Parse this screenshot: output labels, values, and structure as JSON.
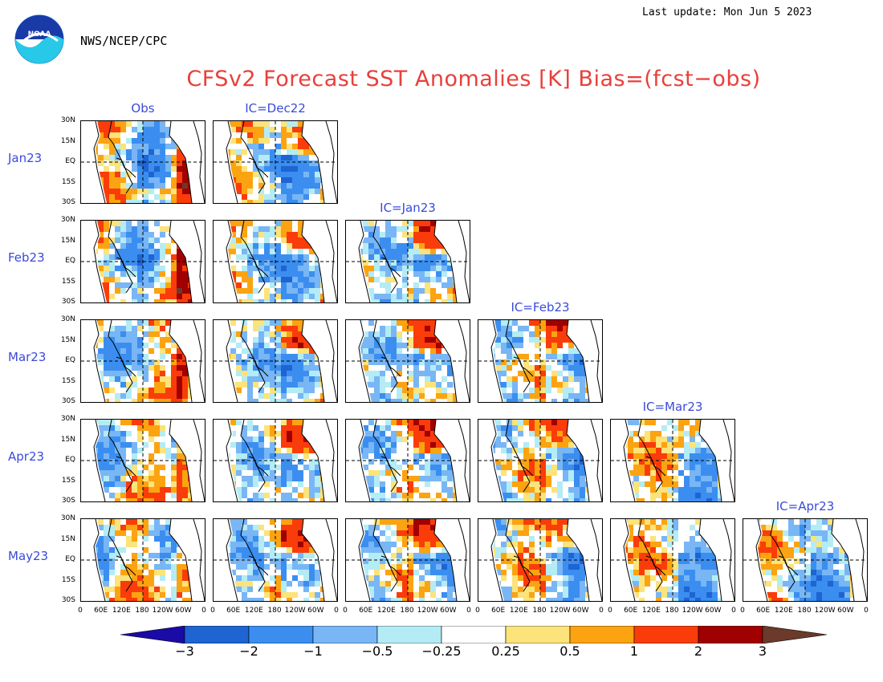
{
  "header": {
    "last_update": "Last update: Mon Jun 5 2023",
    "org": "NWS/NCEP/CPC",
    "logo_text": "NOAA",
    "title": "CFSv2 Forecast SST Anomalies [K] Bias=(fcst−obs)"
  },
  "columns": [
    "Obs",
    "IC=Dec22",
    "IC=Jan23",
    "IC=Feb23",
    "IC=Mar23",
    "IC=Apr23"
  ],
  "rows": [
    "Jan23",
    "Feb23",
    "Mar23",
    "Apr23",
    "May23"
  ],
  "lat_labels": [
    "30N",
    "15N",
    "EQ",
    "15S",
    "30S"
  ],
  "lon_labels": [
    "0",
    "60E",
    "120E",
    "180",
    "120W",
    "60W",
    "0"
  ],
  "legend": {
    "labels": [
      "−3",
      "−2",
      "−1",
      "−0.5",
      "−0.25",
      "0.25",
      "0.5",
      "1",
      "2",
      "3"
    ],
    "colors": [
      "#1a0aa6",
      "#1e64d2",
      "#3b8ef0",
      "#78b6f5",
      "#b4ecf5",
      "#ffffff",
      "#fce37a",
      "#fca312",
      "#fa3c0a",
      "#a00000",
      "#6b3a2a"
    ]
  },
  "panels": [
    {
      "row": "Jan23",
      "column": "Obs"
    },
    {
      "row": "Jan23",
      "column": "IC=Dec22"
    },
    {
      "row": "Feb23",
      "column": "Obs"
    },
    {
      "row": "Feb23",
      "column": "IC=Dec22"
    },
    {
      "row": "Feb23",
      "column": "IC=Jan23"
    },
    {
      "row": "Mar23",
      "column": "Obs"
    },
    {
      "row": "Mar23",
      "column": "IC=Dec22"
    },
    {
      "row": "Mar23",
      "column": "IC=Jan23"
    },
    {
      "row": "Mar23",
      "column": "IC=Feb23"
    },
    {
      "row": "Apr23",
      "column": "Obs"
    },
    {
      "row": "Apr23",
      "column": "IC=Dec22"
    },
    {
      "row": "Apr23",
      "column": "IC=Jan23"
    },
    {
      "row": "Apr23",
      "column": "IC=Feb23"
    },
    {
      "row": "Apr23",
      "column": "IC=Mar23"
    },
    {
      "row": "May23",
      "column": "Obs"
    },
    {
      "row": "May23",
      "column": "IC=Dec22"
    },
    {
      "row": "May23",
      "column": "IC=Jan23"
    },
    {
      "row": "May23",
      "column": "IC=Feb23"
    },
    {
      "row": "May23",
      "column": "IC=Mar23"
    },
    {
      "row": "May23",
      "column": "IC=Apr23"
    }
  ]
}
